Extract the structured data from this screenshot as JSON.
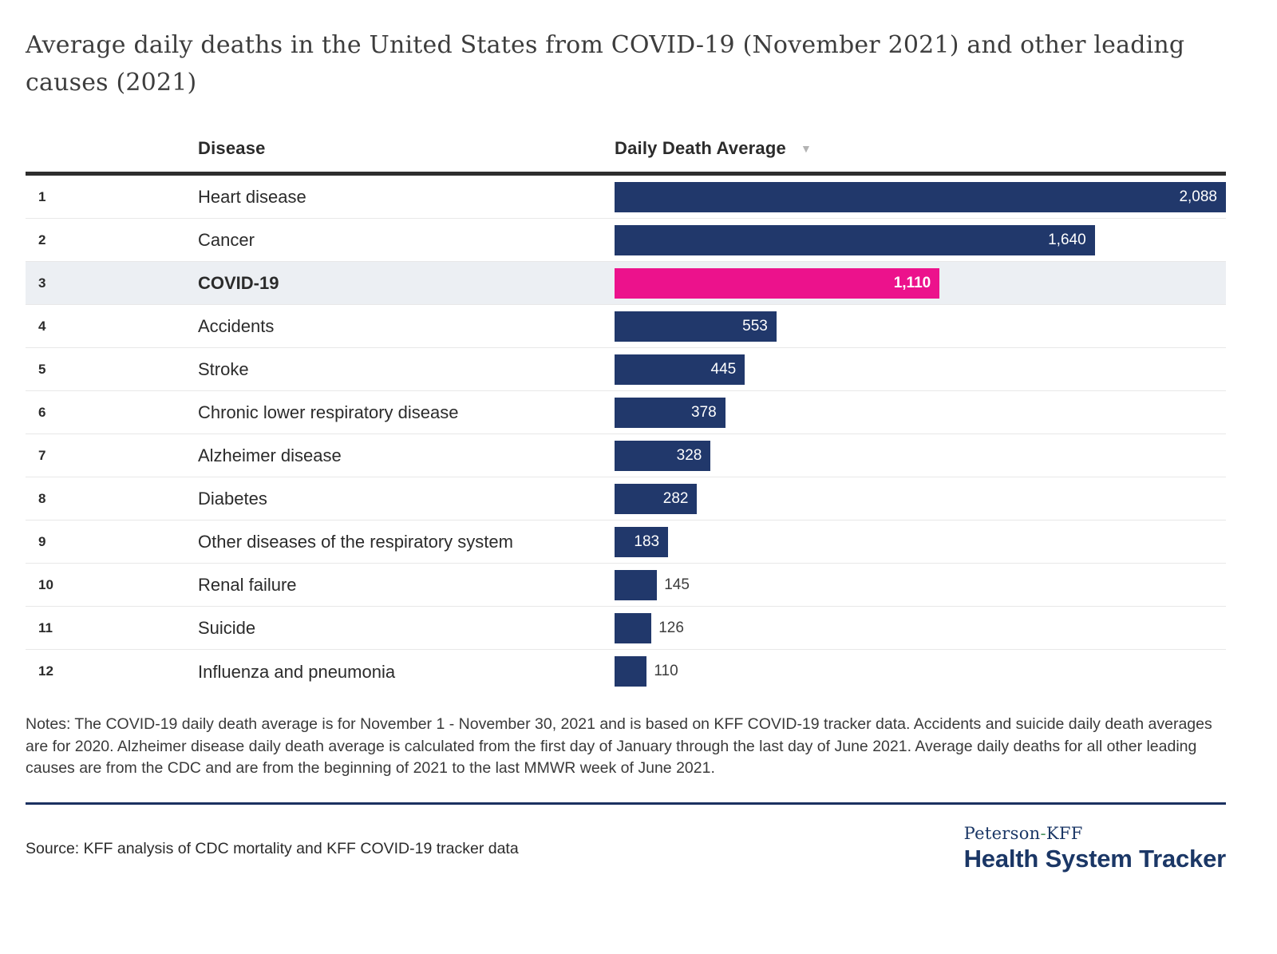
{
  "header": {
    "title_line1": "Average daily deaths in the United States from COVID-19 (November 2021) and other leading",
    "title_line2": "causes (2021)"
  },
  "table": {
    "column_disease": "Disease",
    "column_value": "Daily Death Average",
    "sort_icon": "▼"
  },
  "chart_data": {
    "type": "bar",
    "orientation": "horizontal",
    "title": "Average daily deaths in the United States from COVID-19 (November 2021) and other leading causes (2021)",
    "categories": [
      "Heart disease",
      "Cancer",
      "COVID-19",
      "Accidents",
      "Stroke",
      "Chronic lower respiratory disease",
      "Alzheimer disease",
      "Diabetes",
      "Other diseases of the respiratory system",
      "Renal failure",
      "Suicide",
      "Influenza and pneumonia"
    ],
    "ranks": [
      1,
      2,
      3,
      4,
      5,
      6,
      7,
      8,
      9,
      10,
      11,
      12
    ],
    "values": [
      2088,
      1640,
      1110,
      553,
      445,
      378,
      328,
      282,
      183,
      145,
      126,
      110
    ],
    "value_labels": [
      "2,088",
      "1,640",
      "1,110",
      "553",
      "445",
      "378",
      "328",
      "282",
      "183",
      "145",
      "126",
      "110"
    ],
    "highlight_category": "COVID-19",
    "xlim": [
      0,
      2088
    ],
    "bar_color": "#21386B",
    "highlight_bar_color": "#EC128C",
    "highlight_row_bg": "#ECEFF3",
    "value_label_inside_color": "#FFFFFF",
    "value_label_outside_color": "#3D3D3D",
    "legend": "none",
    "grid": "off"
  },
  "notes": "Notes: The COVID-19 daily death average is for November 1 - November 30, 2021 and is based on KFF COVID-19 tracker data. Accidents and suicide daily death averages are for 2020. Alzheimer disease daily death average is calculated from the first day of January through the last day of June 2021. Average daily deaths for all other leading causes are from the CDC and are from the beginning of 2021 to the last MMWR week of June 2021.",
  "source": "Source: KFF analysis of CDC mortality and KFF COVID-19 tracker data",
  "logo": {
    "brand_left": "Peterson",
    "brand_hyphen": "-",
    "brand_right": "KFF",
    "brand_name": "Health System Tracker",
    "navy": "#1B3766",
    "hyphen_green": "#4B9560"
  }
}
